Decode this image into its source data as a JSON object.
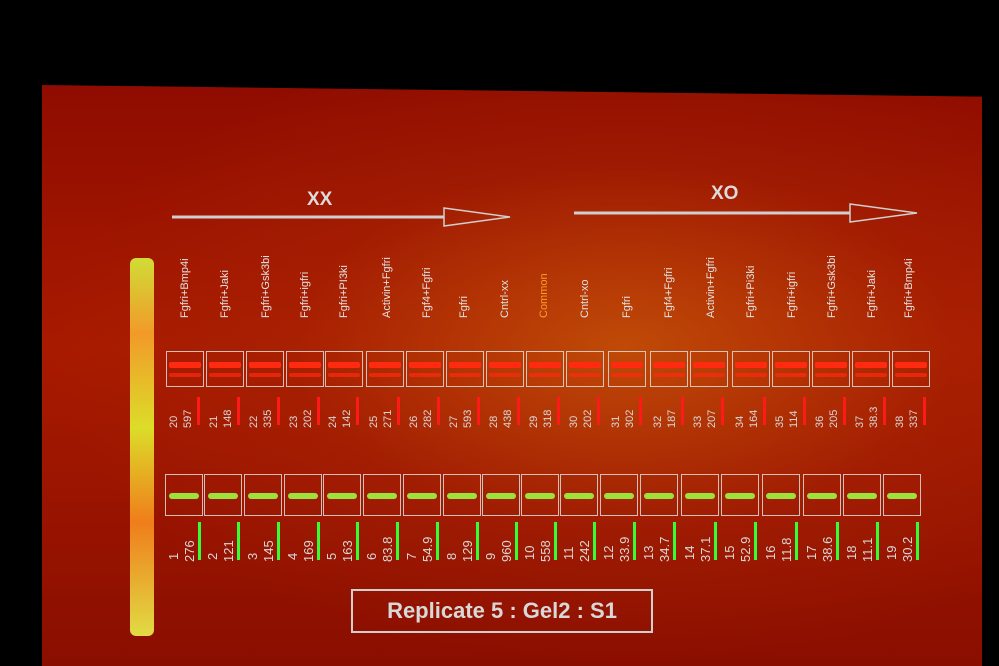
{
  "groups": {
    "left": "XX",
    "right": "XO"
  },
  "lanes": [
    {
      "label": "Fgfri+Bmp4i",
      "color": "#e2e2e2"
    },
    {
      "label": "Fgfri+Jaki",
      "color": "#e2e2e2"
    },
    {
      "label": "Fgfri+Gsk3bi",
      "color": "#e2e2e2"
    },
    {
      "label": "Fgfri+igfri",
      "color": "#e2e2e2"
    },
    {
      "label": "Fgfri+PI3ki",
      "color": "#e2e2e2"
    },
    {
      "label": "Activin+Fgfri",
      "color": "#e2e2e2"
    },
    {
      "label": "Fgf4+Fgfri",
      "color": "#e2e2e2"
    },
    {
      "label": "Fgfri",
      "color": "#e2e2e2"
    },
    {
      "label": "Cntrl-xx",
      "color": "#e2e2e2"
    },
    {
      "label": "Common",
      "color": "#ff9a2a"
    },
    {
      "label": "Cntrl-xo",
      "color": "#e2e2e2"
    },
    {
      "label": "Fgfri",
      "color": "#e2e2e2"
    },
    {
      "label": "Fgf4+Fgfri",
      "color": "#e2e2e2"
    },
    {
      "label": "Activin+Fgfri",
      "color": "#e2e2e2"
    },
    {
      "label": "Fgfri+Pi3ki",
      "color": "#e2e2e2"
    },
    {
      "label": "Fgfri+igfri",
      "color": "#e2e2e2"
    },
    {
      "label": "Fgfri+Gsk3bi",
      "color": "#e2e2e2"
    },
    {
      "label": "Fgfri+Jaki",
      "color": "#e2e2e2"
    },
    {
      "label": "Fgfri+Bmp4i",
      "color": "#e2e2e2"
    }
  ],
  "red_row": [
    {
      "id": "20",
      "value": "597"
    },
    {
      "id": "21",
      "value": "148"
    },
    {
      "id": "22",
      "value": "335"
    },
    {
      "id": "23",
      "value": "202"
    },
    {
      "id": "24",
      "value": "142"
    },
    {
      "id": "25",
      "value": "271"
    },
    {
      "id": "26",
      "value": "282"
    },
    {
      "id": "27",
      "value": "593"
    },
    {
      "id": "28",
      "value": "438"
    },
    {
      "id": "29",
      "value": "318"
    },
    {
      "id": "30",
      "value": "202"
    },
    {
      "id": "31",
      "value": "302"
    },
    {
      "id": "32",
      "value": "187"
    },
    {
      "id": "33",
      "value": "207"
    },
    {
      "id": "34",
      "value": "164"
    },
    {
      "id": "35",
      "value": "114"
    },
    {
      "id": "36",
      "value": "205"
    },
    {
      "id": "37",
      "value": "38.3"
    },
    {
      "id": "38",
      "value": "337"
    }
  ],
  "green_row": [
    {
      "id": "1",
      "value": "276"
    },
    {
      "id": "2",
      "value": "121"
    },
    {
      "id": "3",
      "value": "145"
    },
    {
      "id": "4",
      "value": "169"
    },
    {
      "id": "5",
      "value": "163"
    },
    {
      "id": "6",
      "value": "83.8"
    },
    {
      "id": "7",
      "value": "54.9"
    },
    {
      "id": "8",
      "value": "129"
    },
    {
      "id": "9",
      "value": "960"
    },
    {
      "id": "10",
      "value": "558"
    },
    {
      "id": "11",
      "value": "242"
    },
    {
      "id": "12",
      "value": "33.9"
    },
    {
      "id": "13",
      "value": "34.7"
    },
    {
      "id": "14",
      "value": "37.1"
    },
    {
      "id": "15",
      "value": "52.9"
    },
    {
      "id": "16",
      "value": "11.8"
    },
    {
      "id": "17",
      "value": "38.6"
    },
    {
      "id": "18",
      "value": "11.1"
    },
    {
      "id": "19",
      "value": "30.2"
    }
  ],
  "caption": "Replicate 5 : Gel2 : S1",
  "colors": {
    "red_signal": "#ff2a10",
    "green_signal": "#9de23a",
    "indicator_red": "#ff1a1a",
    "indicator_green": "#33ff33"
  }
}
